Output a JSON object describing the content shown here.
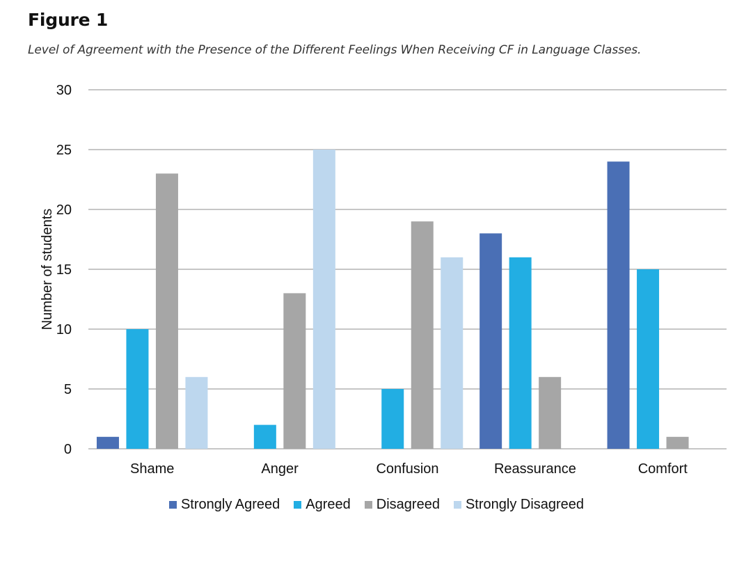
{
  "figure": {
    "label": "Figure 1",
    "caption": "Level of Agreement with the Presence of the Different Feelings When Receiving CF in Language Classes."
  },
  "chart_data": {
    "type": "bar",
    "title": "",
    "xlabel": "",
    "ylabel": "Number of students",
    "ylim": [
      0,
      30
    ],
    "yticks": [
      0,
      5,
      10,
      15,
      20,
      25,
      30
    ],
    "grid": true,
    "legend_position": "bottom",
    "categories": [
      "Shame",
      "Anger",
      "Confusion",
      "Reassurance",
      "Comfort"
    ],
    "series": [
      {
        "name": "Strongly Agreed",
        "color": "#4a6fb5",
        "values": [
          1,
          0,
          0,
          18,
          24
        ]
      },
      {
        "name": "Agreed",
        "color": "#22aee3",
        "values": [
          10,
          2,
          5,
          16,
          15
        ]
      },
      {
        "name": "Disagreed",
        "color": "#a6a6a6",
        "values": [
          23,
          13,
          19,
          6,
          1
        ]
      },
      {
        "name": "Strongly Disagreed",
        "color": "#bdd7ee",
        "values": [
          6,
          25,
          16,
          0,
          0
        ]
      }
    ]
  }
}
